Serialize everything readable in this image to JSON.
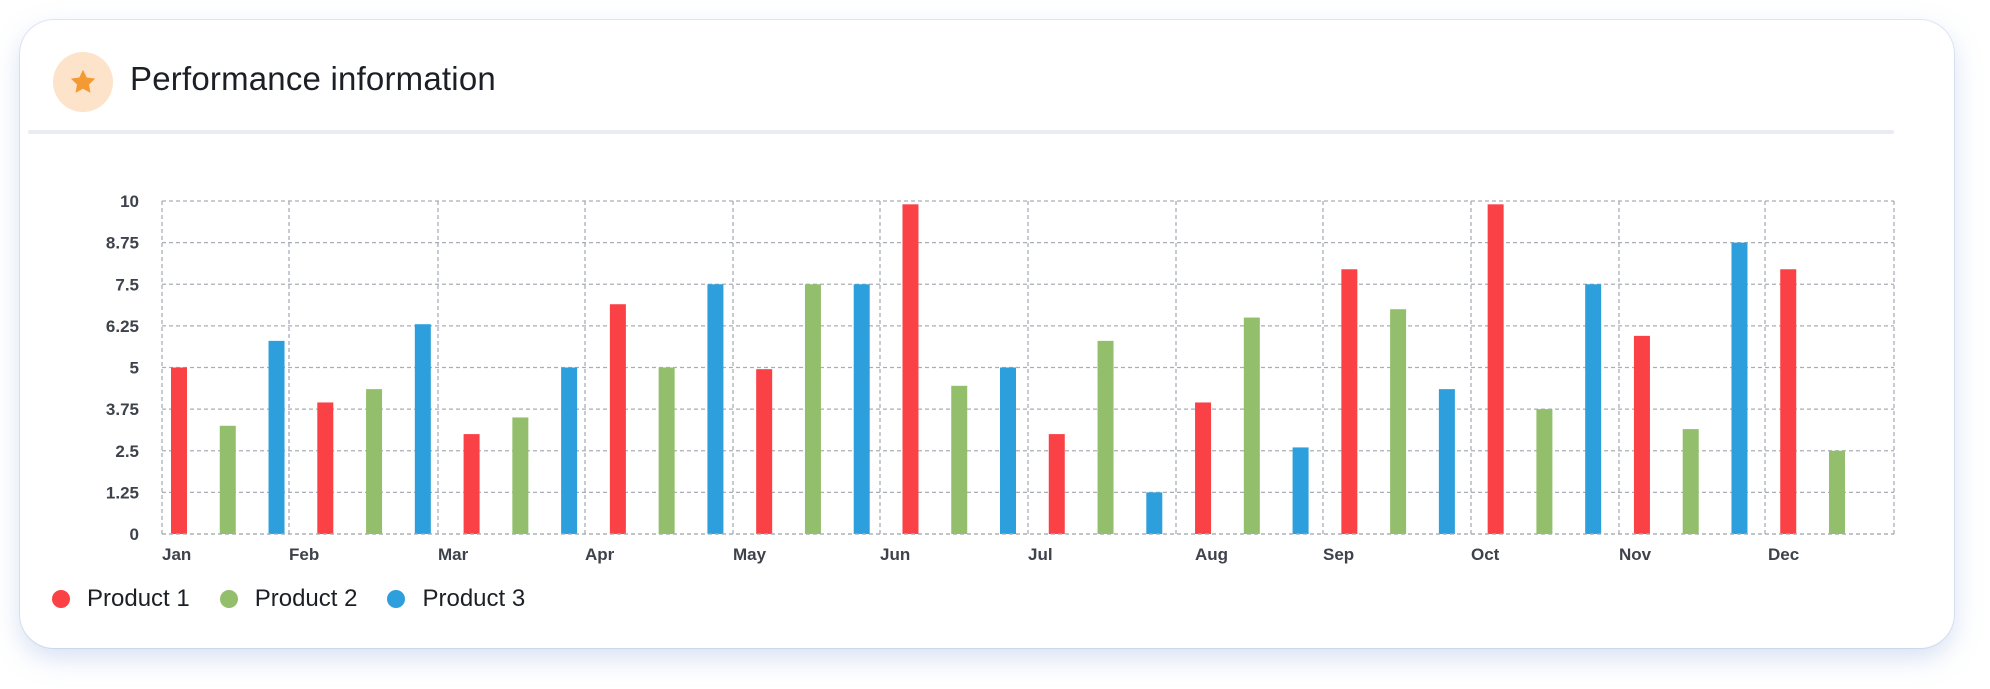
{
  "header": {
    "title": "Performance information",
    "icon": "star-icon"
  },
  "colors": {
    "product1": "#fa4146",
    "product2": "#93be6c",
    "product3": "#2d9fdc",
    "star": "#f39a34",
    "badge": "#fde3c9"
  },
  "legend": [
    {
      "label": "Product 1",
      "color": "#fa4146"
    },
    {
      "label": "Product 2",
      "color": "#93be6c"
    },
    {
      "label": "Product 3",
      "color": "#2d9fdc"
    }
  ],
  "chart_data": {
    "type": "bar",
    "title": "",
    "xlabel": "",
    "ylabel": "",
    "ylim": [
      0,
      10
    ],
    "yticks": [
      "0",
      "1.25",
      "2.5",
      "3.75",
      "5",
      "6.25",
      "7.5",
      "8.75",
      "10"
    ],
    "categories": [
      "Jan",
      "Feb",
      "Mar",
      "Apr",
      "May",
      "Jun",
      "Jul",
      "Aug",
      "Sep",
      "Oct",
      "Nov",
      "Dec"
    ],
    "grid": true,
    "legend_position": "bottom-left",
    "bars": [
      {
        "series": "Product 1",
        "value": 5.0
      },
      {
        "series": "Product 2",
        "value": 3.25
      },
      {
        "series": "Product 3",
        "value": 5.8
      },
      {
        "series": "Product 1",
        "value": 3.95
      },
      {
        "series": "Product 2",
        "value": 4.35
      },
      {
        "series": "Product 3",
        "value": 6.3
      },
      {
        "series": "Product 1",
        "value": 3.0
      },
      {
        "series": "Product 2",
        "value": 3.5
      },
      {
        "series": "Product 3",
        "value": 5.0
      },
      {
        "series": "Product 1",
        "value": 6.9
      },
      {
        "series": "Product 2",
        "value": 5.0
      },
      {
        "series": "Product 3",
        "value": 7.5
      },
      {
        "series": "Product 1",
        "value": 4.95
      },
      {
        "series": "Product 2",
        "value": 7.5
      },
      {
        "series": "Product 3",
        "value": 7.5
      },
      {
        "series": "Product 1",
        "value": 9.9
      },
      {
        "series": "Product 2",
        "value": 4.45
      },
      {
        "series": "Product 3",
        "value": 5.0
      },
      {
        "series": "Product 1",
        "value": 3.0
      },
      {
        "series": "Product 2",
        "value": 5.8
      },
      {
        "series": "Product 3",
        "value": 1.25
      },
      {
        "series": "Product 1",
        "value": 3.95
      },
      {
        "series": "Product 2",
        "value": 6.5
      },
      {
        "series": "Product 3",
        "value": 2.6
      },
      {
        "series": "Product 1",
        "value": 7.95
      },
      {
        "series": "Product 2",
        "value": 6.75
      },
      {
        "series": "Product 3",
        "value": 4.35
      },
      {
        "series": "Product 1",
        "value": 9.9
      },
      {
        "series": "Product 2",
        "value": 3.75
      },
      {
        "series": "Product 3",
        "value": 7.5
      },
      {
        "series": "Product 1",
        "value": 5.95
      },
      {
        "series": "Product 2",
        "value": 3.15
      },
      {
        "series": "Product 3",
        "value": 8.75
      },
      {
        "series": "Product 1",
        "value": 7.95
      },
      {
        "series": "Product 2",
        "value": 2.5
      }
    ]
  }
}
